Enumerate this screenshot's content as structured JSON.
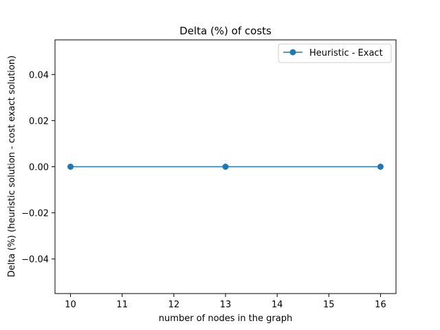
{
  "chart_data": {
    "type": "line",
    "title": "Delta (%) of costs",
    "xlabel": "number of nodes in the graph",
    "ylabel": "Delta (%) (heuristic solution - cost exact solution)",
    "xlim": [
      9.7,
      16.3
    ],
    "ylim": [
      -0.055,
      0.055
    ],
    "xticks": [
      10,
      11,
      12,
      13,
      14,
      15,
      16
    ],
    "yticks": [
      0.04,
      0.02,
      0.0,
      -0.02,
      -0.04
    ],
    "ytick_labels": [
      "0.04",
      "0.02",
      "0.00",
      "−0.02",
      "−0.04"
    ],
    "grid": false,
    "legend_position": "top-right",
    "series": [
      {
        "name": "Heuristic - Exact",
        "color": "#1f77b4",
        "marker": "circle",
        "x": [
          10,
          13,
          16
        ],
        "y": [
          0.0,
          0.0,
          0.0
        ]
      }
    ]
  }
}
